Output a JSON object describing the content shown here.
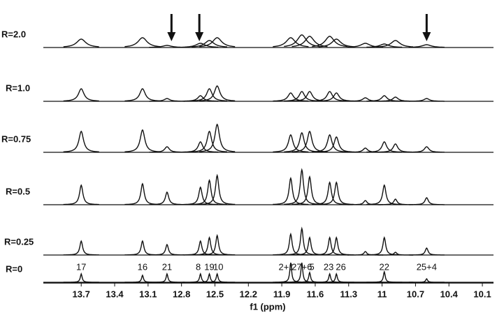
{
  "chart_data": {
    "type": "nmr-stack",
    "x_label": "f1 (ppm)",
    "xlim": [
      14.04,
      10.0
    ],
    "xticks": [
      13.7,
      13.4,
      13.1,
      12.8,
      12.5,
      12.2,
      11.9,
      11.6,
      11.3,
      11.0,
      10.7,
      10.4,
      10.1
    ],
    "x": [
      13.7,
      13.15,
      12.93,
      12.63,
      12.55,
      12.48,
      11.82,
      11.72,
      11.65,
      11.47,
      11.41,
      11.15,
      10.98,
      10.88,
      10.6
    ],
    "color": "#111111",
    "series": [
      {
        "name": "R=2.0",
        "linewidth": 0.05,
        "values": [
          12,
          14,
          3,
          6,
          10,
          14,
          14,
          18,
          16,
          16,
          12,
          6,
          5,
          10,
          4
        ]
      },
      {
        "name": "R=1.0",
        "linewidth": 0.03,
        "values": [
          18,
          18,
          4,
          8,
          18,
          22,
          12,
          14,
          14,
          14,
          12,
          5,
          8,
          6,
          4
        ]
      },
      {
        "name": "R=0.75",
        "linewidth": 0.025,
        "values": [
          30,
          32,
          8,
          15,
          30,
          40,
          25,
          28,
          30,
          25,
          22,
          6,
          15,
          12,
          8
        ]
      },
      {
        "name": "R=0.5",
        "linewidth": 0.018,
        "values": [
          28,
          30,
          18,
          25,
          35,
          42,
          38,
          50,
          40,
          32,
          32,
          6,
          28,
          8,
          10
        ]
      },
      {
        "name": "R=0.25",
        "linewidth": 0.015,
        "values": [
          20,
          20,
          15,
          20,
          25,
          28,
          30,
          38,
          25,
          25,
          25,
          5,
          25,
          4,
          10
        ]
      },
      {
        "name": "R=0",
        "linewidth": 0.01,
        "values": [
          12,
          10,
          12,
          12,
          12,
          12,
          28,
          28,
          14,
          12,
          12,
          0,
          15,
          0,
          5
        ]
      }
    ],
    "peak_labels": [
      {
        "text": "17",
        "x": 13.7
      },
      {
        "text": "16",
        "x": 13.15
      },
      {
        "text": "21",
        "x": 12.93
      },
      {
        "text": "8",
        "x": 12.65
      },
      {
        "text": "19",
        "x": 12.55
      },
      {
        "text": "10",
        "x": 12.47
      },
      {
        "text": "2+1",
        "x": 11.86
      },
      {
        "text": "27+6",
        "x": 11.72
      },
      {
        "text": "5",
        "x": 11.63
      },
      {
        "text": "23",
        "x": 11.48
      },
      {
        "text": "26",
        "x": 11.37
      },
      {
        "text": "22",
        "x": 10.98
      },
      {
        "text": "25+4",
        "x": 10.6
      }
    ],
    "arrows": [
      12.89,
      12.64,
      10.6
    ]
  }
}
